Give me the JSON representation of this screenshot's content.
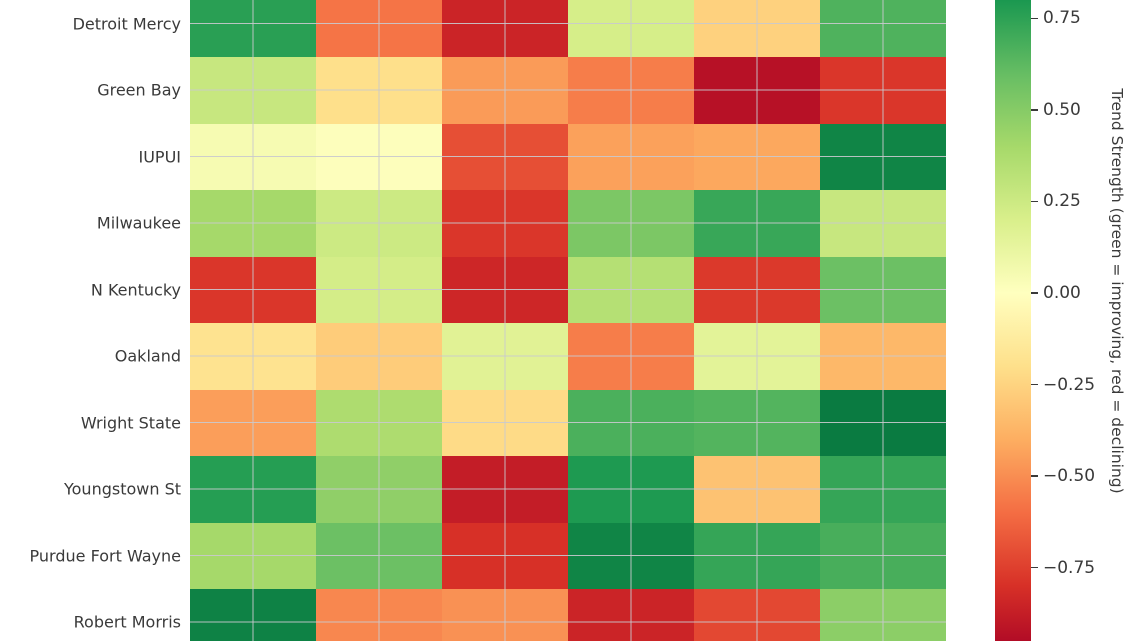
{
  "chart_data": {
    "type": "heatmap",
    "title": "",
    "y_labels": [
      "Detroit Mercy",
      "Green Bay",
      "IUPUI",
      "Milwaukee",
      "N Kentucky",
      "Oakland",
      "Wright State",
      "Youngstown St",
      "Purdue Fort Wayne",
      "Robert Morris"
    ],
    "n_cols": 6,
    "x_labels_visible": false,
    "matrix": [
      [
        0.76,
        -0.58,
        -0.85,
        0.21,
        -0.26,
        0.66
      ],
      [
        0.27,
        -0.2,
        -0.46,
        -0.55,
        -0.93,
        -0.78
      ],
      [
        0.05,
        0.01,
        -0.7,
        -0.44,
        -0.42,
        0.88
      ],
      [
        0.4,
        0.25,
        -0.78,
        0.53,
        0.72,
        0.27
      ],
      [
        -0.78,
        0.22,
        -0.84,
        0.34,
        -0.77,
        0.58
      ],
      [
        -0.18,
        -0.28,
        0.16,
        -0.55,
        0.15,
        -0.36
      ],
      [
        -0.45,
        0.37,
        -0.22,
        0.67,
        0.65,
        0.92
      ],
      [
        0.77,
        0.47,
        -0.88,
        0.79,
        -0.32,
        0.73
      ],
      [
        0.4,
        0.58,
        -0.8,
        0.88,
        0.73,
        0.68
      ],
      [
        0.89,
        -0.52,
        -0.49,
        -0.85,
        -0.72,
        0.48
      ]
    ],
    "colormap": {
      "name": "RdYlGn",
      "anchors": [
        [
          -1.0,
          "#a50026"
        ],
        [
          -0.8,
          "#d73027"
        ],
        [
          -0.6,
          "#f46d43"
        ],
        [
          -0.4,
          "#fdae61"
        ],
        [
          -0.2,
          "#fee08b"
        ],
        [
          0.0,
          "#ffffbf"
        ],
        [
          0.2,
          "#d9ef8b"
        ],
        [
          0.4,
          "#a6d96a"
        ],
        [
          0.6,
          "#66bd63"
        ],
        [
          0.8,
          "#1a9850"
        ],
        [
          1.0,
          "#006837"
        ]
      ]
    },
    "colorbar": {
      "label": "Trend Strength (green = improving, red = declining)",
      "ticks": [
        0.75,
        0.5,
        0.25,
        0.0,
        -0.25,
        -0.5,
        -0.75
      ],
      "tick_labels": [
        "0.75",
        "0.50",
        "0.25",
        "0.00",
        "−0.25",
        "−0.50",
        "−0.75"
      ],
      "visible_value_top": 0.8,
      "visible_value_bottom": -0.95
    },
    "grid": true,
    "text_color": "#3a3a3a",
    "gridline_color": "#c9c9ce",
    "background_color": "#ffffff"
  }
}
